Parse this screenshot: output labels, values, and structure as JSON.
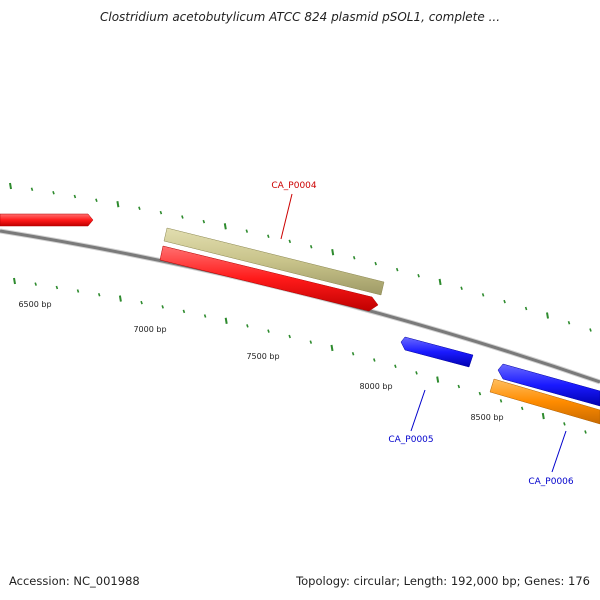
{
  "title": "Clostridium acetobutylicum ATCC 824 plasmid pSOL1, complete ...",
  "footer": {
    "accession": "Accession: NC_001988",
    "summary": "Topology: circular; Length: 192,000 bp; Genes: 176"
  },
  "colors": {
    "backbone": "#7a7a7a",
    "tick": "#2e8b2e",
    "red": "#ff1a1a",
    "khaki": "#c8c38a",
    "blue": "#1a1aff",
    "orange": "#ff8c00",
    "label_red": "#cc0000",
    "label_blue": "#0000cc"
  },
  "position_labels": [
    "6500 bp",
    "7000 bp",
    "7500 bp",
    "8000 bp",
    "8500 bp"
  ],
  "genes": [
    {
      "id": "gene-1",
      "name": "",
      "color": "red"
    },
    {
      "id": "gene-ca-p0004-khaki",
      "name": "",
      "color": "khaki"
    },
    {
      "id": "gene-ca-p0004",
      "name": "CA_P0004",
      "color": "red"
    },
    {
      "id": "gene-ca-p0005",
      "name": "CA_P0005",
      "color": "blue"
    },
    {
      "id": "gene-ca-p0006-blue",
      "name": "",
      "color": "blue"
    },
    {
      "id": "gene-ca-p0006",
      "name": "CA_P0006",
      "color": "orange"
    }
  ]
}
